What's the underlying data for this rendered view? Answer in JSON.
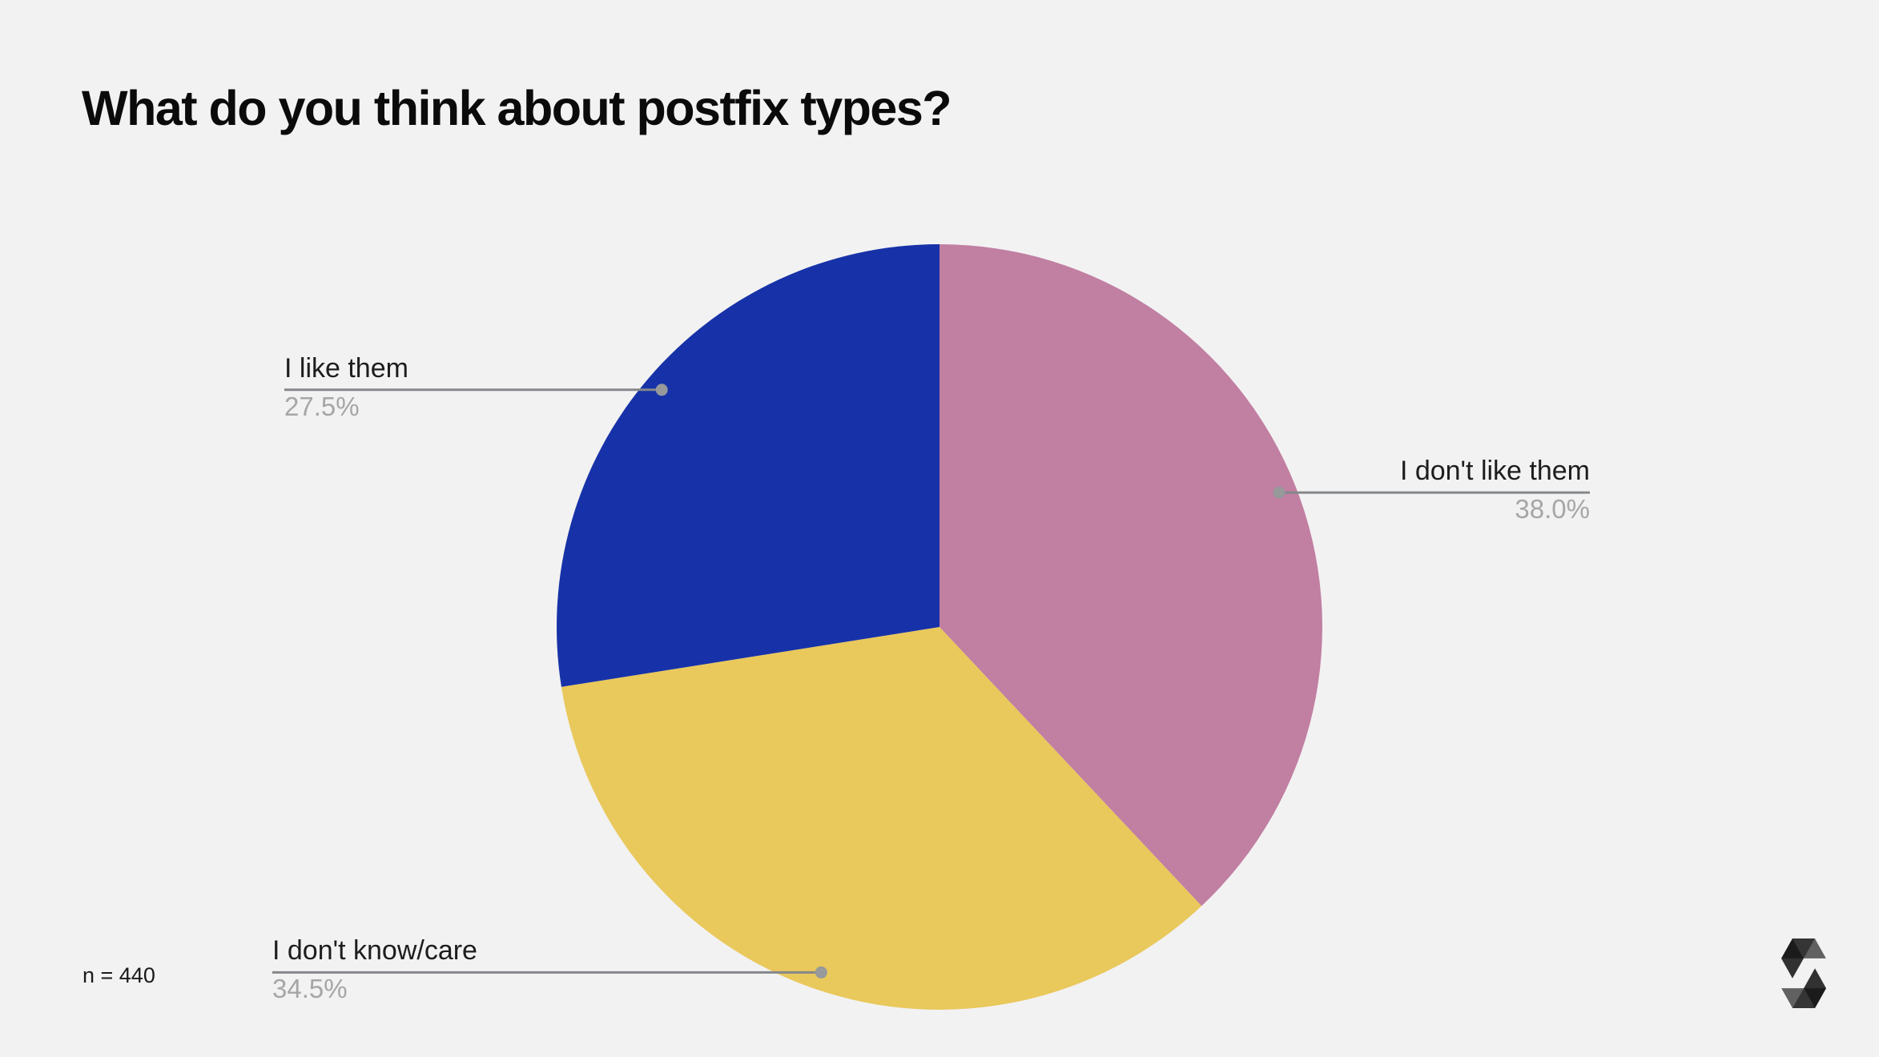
{
  "title": "What do you think about postfix types?",
  "footer": {
    "sample_size": "n = 440"
  },
  "branding": {
    "logo": "solidity-logo"
  },
  "colors": {
    "background": "#f2f2f2",
    "title_text": "#0b0b0b",
    "label_text": "#1d1d1f",
    "pct_text": "#a6a6a6",
    "leader_line": "#85878a",
    "leader_dot": "#97999b"
  },
  "chart_data": {
    "type": "pie",
    "title": "What do you think about postfix types?",
    "sample_size": 440,
    "start_angle_deg": 0,
    "direction": "clockwise",
    "legend": "none",
    "slices": [
      {
        "label": "I don't like them",
        "value": 38.0,
        "pct_label": "38.0%",
        "color": "#c17fa2"
      },
      {
        "label": "I don't know/care",
        "value": 34.5,
        "pct_label": "34.5%",
        "color": "#e9c85c"
      },
      {
        "label": "I like them",
        "value": 27.5,
        "pct_label": "27.5%",
        "color": "#1732a8"
      }
    ]
  }
}
